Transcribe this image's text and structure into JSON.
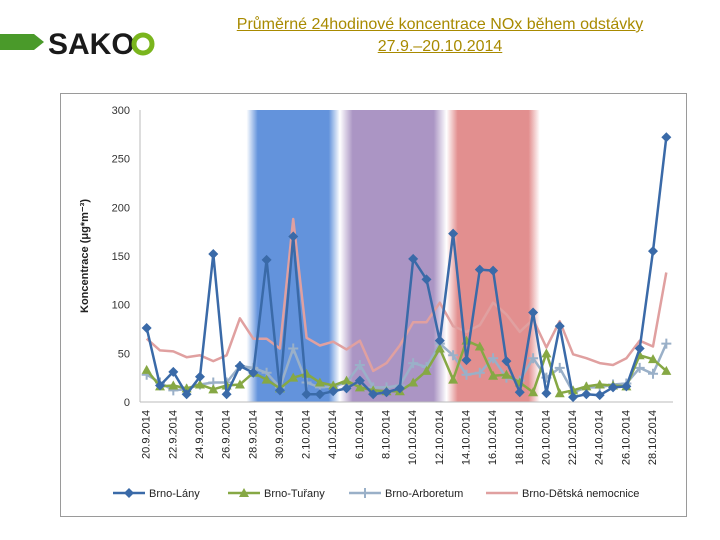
{
  "brand": {
    "logo_text": "SAKO",
    "colors": {
      "logo_dark": "#1a1a1a",
      "logo_green": "#7ab51d",
      "bar": "#4a9a2a"
    }
  },
  "header": {
    "title_line1": "Průměrné 24hodinové koncentrace NOx během odstávky",
    "title_line2": "27.9.–20.10.2014"
  },
  "chart_data": {
    "type": "line",
    "ylabel": "Koncentrace (μg*m⁻³)",
    "ylim": [
      0,
      300
    ],
    "yticks": [
      0,
      50,
      100,
      150,
      200,
      250,
      300
    ],
    "grid": false,
    "legend": "bottom",
    "xlabels": [
      "20.9.2014",
      "22.9.2014",
      "24.9.2014",
      "26.9.2014",
      "28.9.2014",
      "30.9.2014",
      "2.10.2014",
      "4.10.2014",
      "6.10.2014",
      "8.10.2014",
      "10.10.2014",
      "12.10.2014",
      "14.10.2014",
      "16.10.2014",
      "18.10.2014",
      "20.10.2014",
      "22.10.2014",
      "24.10.2014",
      "26.10.2014",
      "28.10.2014"
    ],
    "bands": [
      {
        "start": 8,
        "end": 15,
        "color": "#2f6fd0"
      },
      {
        "start": 15,
        "end": 23,
        "color": "#8f72b0"
      },
      {
        "start": 23,
        "end": 30,
        "color": "#d96a6a"
      }
    ],
    "series": [
      {
        "name": "Brno-Lány",
        "color": "#3a6aa8",
        "marker": "diamond",
        "values": [
          76,
          17,
          31,
          8,
          26,
          152,
          8,
          37,
          30,
          146,
          12,
          170,
          8,
          8,
          11,
          14,
          22,
          8,
          10,
          14,
          147,
          126,
          63,
          173,
          43,
          136,
          135,
          42,
          10,
          92,
          9,
          78,
          5,
          8,
          7,
          15,
          16,
          55,
          155,
          272
        ]
      },
      {
        "name": "Brno-Tuřany",
        "color": "#86a844",
        "marker": "triangle",
        "values": [
          33,
          16,
          17,
          14,
          18,
          13,
          17,
          18,
          30,
          23,
          14,
          25,
          29,
          20,
          17,
          22,
          15,
          12,
          11,
          11,
          20,
          32,
          55,
          23,
          63,
          57,
          27,
          28,
          20,
          10,
          50,
          9,
          12,
          16,
          18,
          17,
          16,
          48,
          44,
          32
        ]
      },
      {
        "name": "Brno-Arboretum",
        "color": "#9ab0c8",
        "marker": "plus",
        "values": [
          28,
          20,
          12,
          13,
          18,
          20,
          20,
          37,
          35,
          30,
          15,
          55,
          20,
          15,
          16,
          20,
          38,
          15,
          15,
          17,
          40,
          36,
          60,
          48,
          28,
          30,
          45,
          25,
          22,
          45,
          25,
          35,
          10,
          15,
          15,
          18,
          19,
          35,
          29,
          60
        ]
      },
      {
        "name": "Brno-Dětská nemocnice",
        "color": "#e0a0a0",
        "marker": "none",
        "values": [
          65,
          53,
          52,
          46,
          48,
          42,
          48,
          86,
          65,
          65,
          55,
          188,
          66,
          58,
          62,
          54,
          63,
          32,
          40,
          58,
          82,
          82,
          102,
          78,
          72,
          79,
          102,
          90,
          72,
          85,
          56,
          83,
          49,
          45,
          40,
          38,
          45,
          63,
          57,
          133
        ]
      }
    ]
  }
}
